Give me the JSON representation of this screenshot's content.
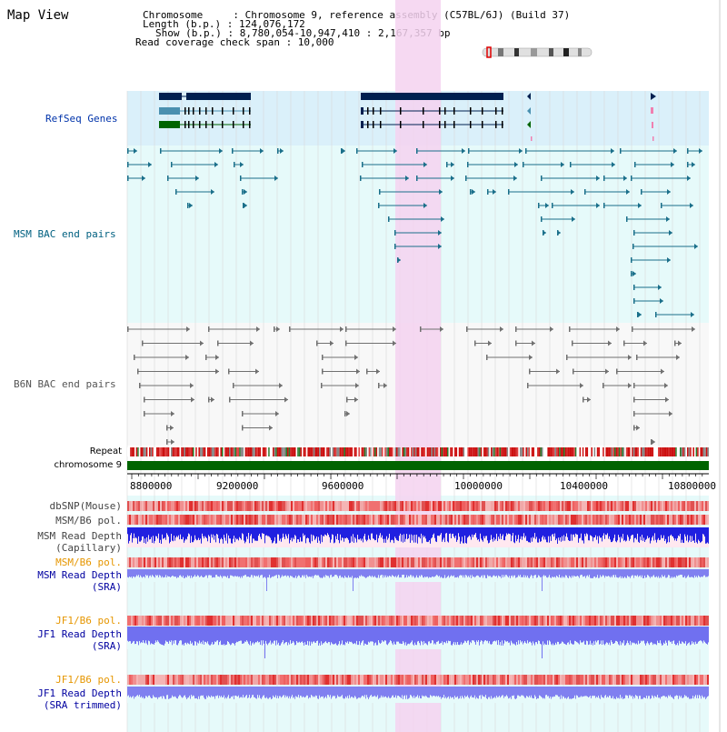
{
  "title": "Map View",
  "info": {
    "chromosome": "Chromosome     : Chromosome 9, reference assembly (C57BL/6J) (Build 37)",
    "length": "Length (b.p.) : 124,076,172",
    "show": "Show (b.p.) : 8,780,054-10,947,410 : 2,167,357 bp",
    "coverage": "Read coverage check span : 10,000"
  },
  "tracks": {
    "refseq": "RefSeq Genes",
    "msm_bac": "MSM BAC end pairs",
    "b6n_bac": "B6N BAC end pairs",
    "repeat": "Repeat",
    "chromosome": "chromosome 9",
    "dbsnp": "dbSNP(Mouse)",
    "msm_b6_pol_1": "MSM/B6 pol.",
    "msm_read_depth_cap_1": "MSM Read Depth",
    "msm_read_depth_cap_2": "(Capillary)",
    "msm_b6_pol_2": "MSM/B6 pol.",
    "msm_read_depth_sra_1": "MSM Read Depth",
    "msm_read_depth_sra_2": "(SRA)",
    "jf1_b6_pol_1": "JF1/B6 pol.",
    "jf1_read_depth_sra_1": "JF1 Read Depth",
    "jf1_read_depth_sra_2": "(SRA)",
    "jf1_b6_pol_2": "JF1/B6 pol.",
    "jf1_read_depth_trim_1": "JF1 Read Depth",
    "jf1_read_depth_trim_2": "(SRA trimmed)"
  },
  "axis": {
    "ticks": [
      "8800000",
      "9200000",
      "9600000",
      "10000000",
      "10400000",
      "10800000"
    ]
  },
  "colors": {
    "refseq_bg": "#daf0fa",
    "msm_bg": "#e6fafa",
    "highlight": "#f5d2f0",
    "chrom": "#006400",
    "label_blue": "#0000a0",
    "label_orange": "#e69600",
    "label_gray": "#444444",
    "label_msm": "#006080",
    "label_refseq": "#0033aa"
  }
}
